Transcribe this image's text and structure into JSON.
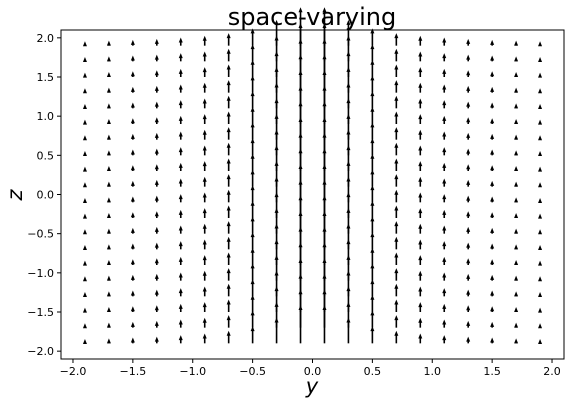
{
  "chart_data": {
    "type": "quiver",
    "title": "space-varying",
    "xlabel": "y",
    "ylabel": "z",
    "xlim": [
      -2.1,
      2.1
    ],
    "ylim": [
      -2.1,
      2.1
    ],
    "grid": false,
    "legend": "none",
    "arrow_color": "#000000",
    "x_ticks": [
      -2.0,
      -1.5,
      -1.0,
      -0.5,
      0.0,
      0.5,
      1.0,
      1.5,
      2.0
    ],
    "x_tick_labels": [
      "−2.0",
      "−1.5",
      "−1.0",
      "−0.5",
      "0.0",
      "0.5",
      "1.0",
      "1.5",
      "2.0"
    ],
    "y_ticks": [
      -2.0,
      -1.5,
      -1.0,
      -0.5,
      0.0,
      0.5,
      1.0,
      1.5,
      2.0
    ],
    "y_tick_labels": [
      "−2.0",
      "−1.5",
      "−1.0",
      "−0.5",
      "0.0",
      "0.5",
      "1.0",
      "1.5",
      "2.0"
    ],
    "grid_y_start": -1.9,
    "grid_y_step": 0.2,
    "grid_y_count": 20,
    "grid_z_start": -1.9,
    "grid_z_step": 0.2,
    "grid_z_count": 20,
    "vector_direction": "+z",
    "magnitude_profile": [
      0.28,
      0.32,
      0.37,
      0.43,
      0.52,
      0.63,
      0.8,
      1.1,
      1.65,
      2.45,
      2.45,
      1.65,
      1.1,
      0.8,
      0.63,
      0.52,
      0.43,
      0.37,
      0.32,
      0.28
    ]
  }
}
